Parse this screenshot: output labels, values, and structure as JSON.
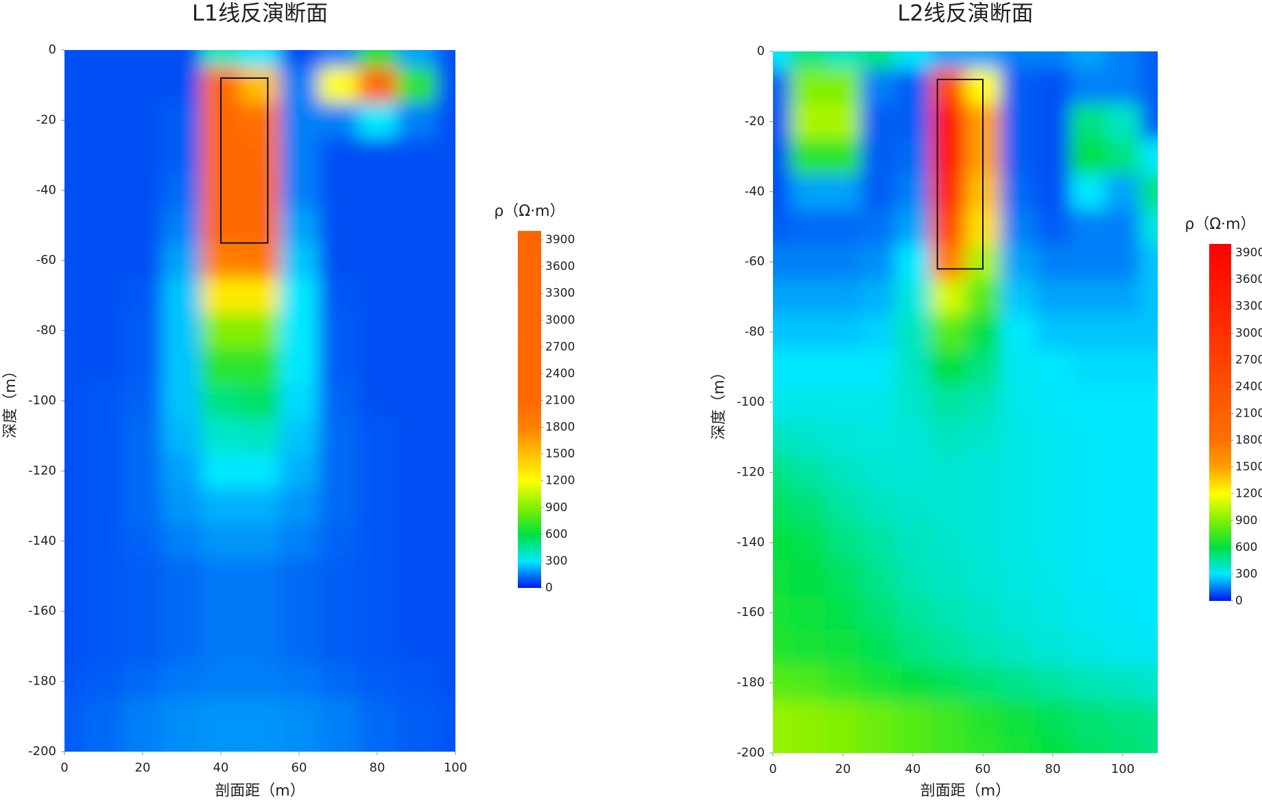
{
  "chart_data": [
    {
      "type": "heatmap",
      "title": "L1线反演断面",
      "xlabel": "剖面距（m）",
      "ylabel": "深度（m）",
      "x": [
        0,
        10,
        20,
        30,
        40,
        50,
        60,
        70,
        80,
        90,
        100
      ],
      "y": [
        0,
        -10,
        -20,
        -30,
        -40,
        -50,
        -60,
        -70,
        -80,
        -90,
        -100,
        -110,
        -120,
        -130,
        -140,
        -150,
        -160,
        -170,
        -180,
        -190,
        -200
      ],
      "values": [
        [
          80,
          80,
          80,
          80,
          400,
          300,
          80,
          150,
          600,
          200,
          80
        ],
        [
          80,
          80,
          80,
          80,
          2200,
          1500,
          150,
          1200,
          3000,
          700,
          80
        ],
        [
          80,
          80,
          80,
          100,
          3000,
          2000,
          150,
          150,
          300,
          150,
          80
        ],
        [
          80,
          80,
          80,
          100,
          3000,
          2200,
          150,
          80,
          80,
          80,
          80
        ],
        [
          80,
          80,
          80,
          120,
          3000,
          2400,
          150,
          80,
          80,
          80,
          80
        ],
        [
          80,
          80,
          80,
          150,
          2500,
          2400,
          200,
          80,
          80,
          80,
          80
        ],
        [
          80,
          80,
          80,
          200,
          1800,
          1900,
          250,
          80,
          80,
          80,
          80
        ],
        [
          80,
          80,
          90,
          250,
          1300,
          1300,
          300,
          90,
          80,
          80,
          80
        ],
        [
          80,
          80,
          100,
          250,
          900,
          900,
          300,
          100,
          80,
          80,
          80
        ],
        [
          80,
          80,
          100,
          250,
          700,
          700,
          300,
          100,
          80,
          80,
          80
        ],
        [
          80,
          90,
          110,
          250,
          500,
          550,
          280,
          110,
          80,
          80,
          80
        ],
        [
          80,
          90,
          120,
          230,
          380,
          400,
          250,
          120,
          90,
          80,
          80
        ],
        [
          80,
          90,
          120,
          200,
          300,
          300,
          220,
          120,
          90,
          80,
          80
        ],
        [
          80,
          90,
          120,
          180,
          220,
          220,
          180,
          120,
          90,
          80,
          80
        ],
        [
          80,
          90,
          110,
          150,
          180,
          180,
          150,
          110,
          90,
          80,
          80
        ],
        [
          80,
          90,
          100,
          120,
          140,
          140,
          120,
          100,
          90,
          80,
          80
        ],
        [
          80,
          90,
          100,
          120,
          140,
          140,
          120,
          100,
          90,
          80,
          80
        ],
        [
          80,
          90,
          100,
          120,
          140,
          140,
          120,
          100,
          90,
          80,
          80
        ],
        [
          90,
          100,
          120,
          140,
          150,
          150,
          140,
          120,
          100,
          90,
          80
        ],
        [
          100,
          120,
          150,
          170,
          180,
          180,
          170,
          150,
          120,
          100,
          90
        ],
        [
          100,
          120,
          150,
          170,
          180,
          180,
          170,
          150,
          120,
          100,
          90
        ]
      ],
      "xlim": [
        0,
        100
      ],
      "ylim": [
        -200,
        0
      ],
      "xticks": [
        0,
        20,
        40,
        60,
        80,
        100
      ],
      "yticks": [
        0,
        -20,
        -40,
        -60,
        -80,
        -100,
        -120,
        -140,
        -160,
        -180,
        -200
      ],
      "box": {
        "x": [
          40,
          52
        ],
        "y": [
          -8,
          -55
        ]
      },
      "colorbar": {
        "label": "ρ（Ω·m）",
        "lim": [
          0,
          4000
        ],
        "ticks": [
          0,
          300,
          600,
          900,
          1200,
          1500,
          1800,
          2100,
          2400,
          2700,
          3000,
          3300,
          3600,
          3900
        ],
        "colormap": [
          {
            "value": 0,
            "color": "#0018f0"
          },
          {
            "value": 300,
            "color": "#00e8ff"
          },
          {
            "value": 600,
            "color": "#00e040"
          },
          {
            "value": 900,
            "color": "#80f000"
          },
          {
            "value": 1200,
            "color": "#ffff00"
          },
          {
            "value": 1500,
            "color": "#ffc000"
          },
          {
            "value": 1800,
            "color": "#ff8000"
          },
          {
            "value": 2100,
            "color": "#ff6a00"
          },
          {
            "value": 4000,
            "color": "#ff6600"
          }
        ]
      }
    },
    {
      "type": "heatmap",
      "title": "L2线反演断面",
      "xlabel": "剖面距（m）",
      "ylabel": "深度（m）",
      "x": [
        0,
        10,
        20,
        30,
        40,
        50,
        60,
        70,
        80,
        90,
        100,
        110
      ],
      "y": [
        0,
        -10,
        -20,
        -30,
        -40,
        -50,
        -60,
        -70,
        -80,
        -90,
        -100,
        -110,
        -120,
        -130,
        -140,
        -150,
        -160,
        -170,
        -180,
        -190,
        -200
      ],
      "values": [
        [
          300,
          500,
          400,
          500,
          300,
          200,
          200,
          150,
          150,
          200,
          150,
          100
        ],
        [
          100,
          900,
          900,
          150,
          100,
          2500,
          1200,
          100,
          80,
          150,
          150,
          100
        ],
        [
          80,
          1000,
          1000,
          100,
          100,
          3500,
          1500,
          100,
          80,
          500,
          400,
          100
        ],
        [
          80,
          700,
          700,
          100,
          120,
          3500,
          1500,
          100,
          80,
          600,
          500,
          300
        ],
        [
          80,
          200,
          200,
          100,
          150,
          3200,
          1400,
          120,
          80,
          300,
          200,
          500
        ],
        [
          100,
          120,
          120,
          130,
          200,
          2500,
          1300,
          150,
          100,
          150,
          150,
          350
        ],
        [
          150,
          150,
          150,
          170,
          300,
          1700,
          1000,
          200,
          150,
          150,
          150,
          250
        ],
        [
          200,
          200,
          200,
          220,
          350,
          1100,
          800,
          250,
          200,
          200,
          200,
          250
        ],
        [
          250,
          250,
          250,
          270,
          400,
          800,
          600,
          300,
          250,
          250,
          250,
          250
        ],
        [
          300,
          300,
          300,
          300,
          400,
          600,
          500,
          320,
          300,
          280,
          280,
          280
        ],
        [
          330,
          330,
          330,
          330,
          380,
          450,
          420,
          330,
          310,
          300,
          300,
          300
        ],
        [
          400,
          380,
          360,
          350,
          360,
          400,
          380,
          340,
          320,
          310,
          300,
          300
        ],
        [
          500,
          450,
          400,
          370,
          360,
          370,
          360,
          340,
          320,
          310,
          300,
          300
        ],
        [
          550,
          520,
          450,
          400,
          380,
          370,
          360,
          340,
          320,
          310,
          300,
          300
        ],
        [
          600,
          580,
          500,
          450,
          400,
          380,
          360,
          340,
          320,
          310,
          300,
          300
        ],
        [
          620,
          600,
          550,
          480,
          420,
          390,
          370,
          350,
          330,
          310,
          300,
          300
        ],
        [
          650,
          620,
          580,
          520,
          460,
          420,
          390,
          360,
          340,
          320,
          310,
          300
        ],
        [
          680,
          650,
          620,
          570,
          500,
          460,
          420,
          390,
          360,
          340,
          320,
          320
        ],
        [
          800,
          780,
          720,
          650,
          600,
          560,
          520,
          480,
          450,
          420,
          400,
          380
        ],
        [
          950,
          930,
          900,
          850,
          800,
          750,
          680,
          620,
          560,
          520,
          500,
          480
        ],
        [
          950,
          930,
          900,
          850,
          800,
          750,
          700,
          650,
          600,
          550,
          520,
          500
        ]
      ],
      "xlim": [
        0,
        110
      ],
      "ylim": [
        -200,
        0
      ],
      "xticks": [
        0,
        20,
        40,
        60,
        80,
        100
      ],
      "yticks": [
        0,
        -20,
        -40,
        -60,
        -80,
        -100,
        -120,
        -140,
        -160,
        -180,
        -200
      ],
      "box": {
        "x": [
          47,
          60
        ],
        "y": [
          -8,
          -62
        ]
      },
      "colorbar": {
        "label": "ρ（Ω·m）",
        "lim": [
          0,
          4000
        ],
        "ticks": [
          0,
          300,
          600,
          900,
          1200,
          1500,
          1800,
          2100,
          2400,
          2700,
          3000,
          3300,
          3600,
          3900
        ],
        "colormap": [
          {
            "value": 0,
            "color": "#0018f0"
          },
          {
            "value": 300,
            "color": "#00e8ff"
          },
          {
            "value": 600,
            "color": "#00e040"
          },
          {
            "value": 900,
            "color": "#80f000"
          },
          {
            "value": 1200,
            "color": "#ffff00"
          },
          {
            "value": 1500,
            "color": "#ffa000"
          },
          {
            "value": 1800,
            "color": "#ff7000"
          },
          {
            "value": 2700,
            "color": "#ff4000"
          },
          {
            "value": 4000,
            "color": "#ff0000"
          }
        ]
      }
    }
  ]
}
